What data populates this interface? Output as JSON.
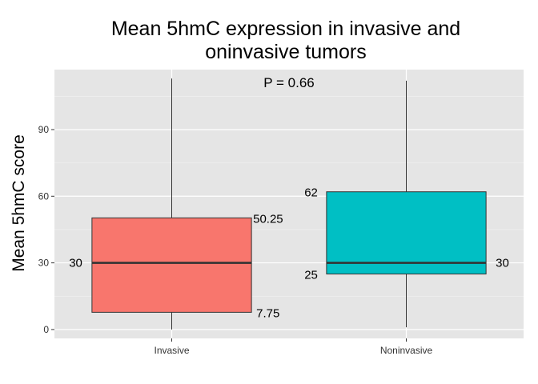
{
  "chart_data": {
    "type": "boxplot",
    "title_lines": [
      "Mean 5hmC expression in invasive and",
      "oninvasive tumors"
    ],
    "xlabel": "",
    "ylabel": "Mean 5hmC score",
    "ylim": [
      -4,
      117
    ],
    "yticks": [
      0,
      30,
      60,
      90
    ],
    "ytick_labels": [
      "0",
      "30",
      "60",
      "90"
    ],
    "annotation": "P = 0.66",
    "grid": true,
    "legend": "none",
    "colors": {
      "panel": "#e5e5e5",
      "grid": "#ffffff",
      "box_outline": "#333333"
    },
    "categories": [
      "Invasive",
      "Noninvasive"
    ],
    "boxes": [
      {
        "category": "Invasive",
        "color": "#f8766d",
        "min": 0,
        "q1": 7.75,
        "median": 30,
        "q3": 50.25,
        "max": 113,
        "labels": {
          "q1": "7.75",
          "median": "30",
          "q3": "50.25"
        }
      },
      {
        "category": "Noninvasive",
        "color": "#00bfc4",
        "min": 1,
        "q1": 25,
        "median": 30,
        "q3": 62,
        "max": 112,
        "labels": {
          "q1": "25",
          "median": "30",
          "q3": "62"
        }
      }
    ]
  }
}
